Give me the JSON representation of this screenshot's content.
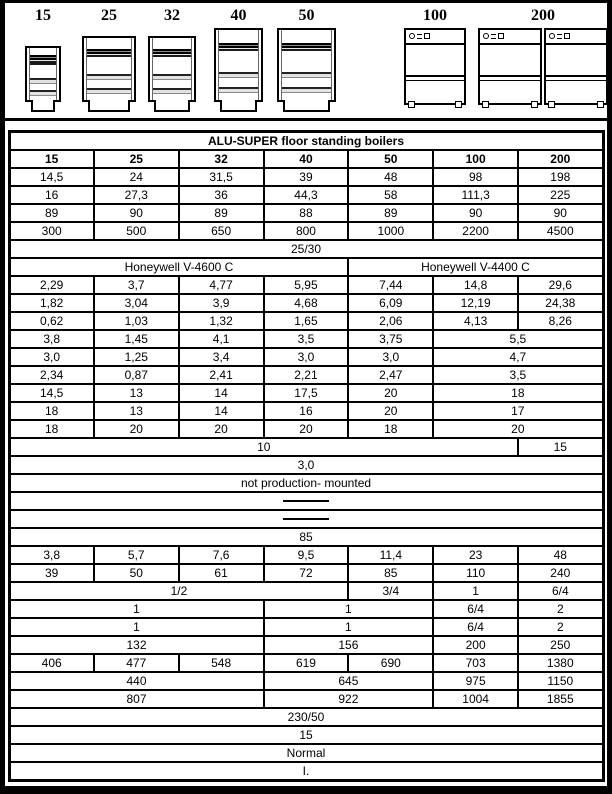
{
  "figures": {
    "labels": [
      "15",
      "25",
      "32",
      "40",
      "50",
      "100",
      "200"
    ]
  },
  "table": {
    "title": "ALU-SUPER floor standing boilers",
    "columns": [
      "15",
      "25",
      "32",
      "40",
      "50",
      "100",
      "200"
    ],
    "rows": [
      {
        "title": true,
        "cells": [
          {
            "t": "ALU-SUPER floor standing boilers",
            "s": 7
          }
        ]
      },
      {
        "bold": true,
        "cells": [
          {
            "t": "15"
          },
          {
            "t": "25"
          },
          {
            "t": "32"
          },
          {
            "t": "40"
          },
          {
            "t": "50"
          },
          {
            "t": "100"
          },
          {
            "t": "200"
          }
        ]
      },
      {
        "cells": [
          {
            "t": "14,5"
          },
          {
            "t": "24"
          },
          {
            "t": "31,5"
          },
          {
            "t": "39"
          },
          {
            "t": "48"
          },
          {
            "t": "98"
          },
          {
            "t": "198"
          }
        ]
      },
      {
        "cells": [
          {
            "t": "16"
          },
          {
            "t": "27,3"
          },
          {
            "t": "36"
          },
          {
            "t": "44,3"
          },
          {
            "t": "58"
          },
          {
            "t": "111,3"
          },
          {
            "t": "225"
          }
        ]
      },
      {
        "cells": [
          {
            "t": "89"
          },
          {
            "t": "90"
          },
          {
            "t": "89"
          },
          {
            "t": "88"
          },
          {
            "t": "89"
          },
          {
            "t": "90"
          },
          {
            "t": "90"
          }
        ]
      },
      {
        "cells": [
          {
            "t": "300"
          },
          {
            "t": "500"
          },
          {
            "t": "650"
          },
          {
            "t": "800"
          },
          {
            "t": "1000"
          },
          {
            "t": "2200"
          },
          {
            "t": "4500"
          }
        ]
      },
      {
        "cells": [
          {
            "t": "25/30",
            "s": 7
          }
        ]
      },
      {
        "cells": [
          {
            "t": "Honeywell V-4600 C",
            "s": 4
          },
          {
            "t": "Honeywell V-4400 C",
            "s": 3
          }
        ]
      },
      {
        "cells": [
          {
            "t": "2,29"
          },
          {
            "t": "3,7"
          },
          {
            "t": "4,77"
          },
          {
            "t": "5,95"
          },
          {
            "t": "7,44"
          },
          {
            "t": "14,8"
          },
          {
            "t": "29,6"
          }
        ]
      },
      {
        "cells": [
          {
            "t": "1,82"
          },
          {
            "t": "3,04"
          },
          {
            "t": "3,9"
          },
          {
            "t": "4,68"
          },
          {
            "t": "6,09"
          },
          {
            "t": "12,19"
          },
          {
            "t": "24,38"
          }
        ]
      },
      {
        "cells": [
          {
            "t": "0,62"
          },
          {
            "t": "1,03"
          },
          {
            "t": "1,32"
          },
          {
            "t": "1,65"
          },
          {
            "t": "2,06"
          },
          {
            "t": "4,13"
          },
          {
            "t": "8,26"
          }
        ]
      },
      {
        "cells": [
          {
            "t": "3,8"
          },
          {
            "t": "1,45"
          },
          {
            "t": "4,1"
          },
          {
            "t": "3,5"
          },
          {
            "t": "3,75"
          },
          {
            "t": "5,5",
            "s": 2
          }
        ]
      },
      {
        "cells": [
          {
            "t": "3,0"
          },
          {
            "t": "1,25"
          },
          {
            "t": "3,4"
          },
          {
            "t": "3,0"
          },
          {
            "t": "3,0"
          },
          {
            "t": "4,7",
            "s": 2
          }
        ]
      },
      {
        "cells": [
          {
            "t": "2,34"
          },
          {
            "t": "0,87"
          },
          {
            "t": "2,41"
          },
          {
            "t": "2,21"
          },
          {
            "t": "2,47"
          },
          {
            "t": "3,5",
            "s": 2
          }
        ]
      },
      {
        "cells": [
          {
            "t": "14,5"
          },
          {
            "t": "13"
          },
          {
            "t": "14"
          },
          {
            "t": "17,5"
          },
          {
            "t": "20"
          },
          {
            "t": "18",
            "s": 2
          }
        ]
      },
      {
        "cells": [
          {
            "t": "18"
          },
          {
            "t": "13"
          },
          {
            "t": "14"
          },
          {
            "t": "16"
          },
          {
            "t": "20"
          },
          {
            "t": "17",
            "s": 2
          }
        ]
      },
      {
        "cells": [
          {
            "t": "18"
          },
          {
            "t": "20"
          },
          {
            "t": "20"
          },
          {
            "t": "20"
          },
          {
            "t": "18"
          },
          {
            "t": "20",
            "s": 2
          }
        ]
      },
      {
        "cells": [
          {
            "t": "10",
            "s": 6
          },
          {
            "t": "15"
          }
        ]
      },
      {
        "cells": [
          {
            "t": "3,0",
            "s": 7
          }
        ]
      },
      {
        "cells": [
          {
            "t": "not production- mounted",
            "s": 7
          }
        ]
      },
      {
        "cells": [
          {
            "dash": true,
            "s": 7
          }
        ]
      },
      {
        "cells": [
          {
            "dash": true,
            "s": 7
          }
        ]
      },
      {
        "cells": [
          {
            "t": "85",
            "s": 7
          }
        ]
      },
      {
        "cells": [
          {
            "t": "3,8"
          },
          {
            "t": "5,7"
          },
          {
            "t": "7,6"
          },
          {
            "t": "9,5"
          },
          {
            "t": "11,4"
          },
          {
            "t": "23"
          },
          {
            "t": "48"
          }
        ]
      },
      {
        "cells": [
          {
            "t": "39"
          },
          {
            "t": "50"
          },
          {
            "t": "61"
          },
          {
            "t": "72"
          },
          {
            "t": "85"
          },
          {
            "t": "110"
          },
          {
            "t": "240"
          }
        ]
      },
      {
        "cells": [
          {
            "t": "1/2",
            "s": 4
          },
          {
            "t": "3/4"
          },
          {
            "t": "1"
          },
          {
            "t": "6/4"
          }
        ]
      },
      {
        "cells": [
          {
            "t": "1",
            "s": 3
          },
          {
            "t": "1",
            "s": 2
          },
          {
            "t": "6/4"
          },
          {
            "t": "2"
          }
        ]
      },
      {
        "cells": [
          {
            "t": "1",
            "s": 3
          },
          {
            "t": "1",
            "s": 2
          },
          {
            "t": "6/4"
          },
          {
            "t": "2"
          }
        ]
      },
      {
        "cells": [
          {
            "t": "132",
            "s": 3
          },
          {
            "t": "156",
            "s": 2
          },
          {
            "t": "200"
          },
          {
            "t": "250"
          }
        ]
      },
      {
        "cells": [
          {
            "t": "406"
          },
          {
            "t": "477"
          },
          {
            "t": "548"
          },
          {
            "t": "619"
          },
          {
            "t": "690"
          },
          {
            "t": "703"
          },
          {
            "t": "1380"
          }
        ]
      },
      {
        "cells": [
          {
            "t": "440",
            "s": 3
          },
          {
            "t": "645",
            "s": 2
          },
          {
            "t": "975"
          },
          {
            "t": "1150"
          }
        ]
      },
      {
        "cells": [
          {
            "t": "807",
            "s": 3
          },
          {
            "t": "922",
            "s": 2
          },
          {
            "t": "1004"
          },
          {
            "t": "1855"
          }
        ]
      },
      {
        "cells": [
          {
            "t": "230/50",
            "s": 7
          }
        ]
      },
      {
        "cells": [
          {
            "t": "15",
            "s": 7
          }
        ]
      },
      {
        "cells": [
          {
            "t": "Normal",
            "s": 7
          }
        ]
      },
      {
        "cells": [
          {
            "t": "I.",
            "s": 7
          }
        ]
      }
    ]
  },
  "colors": {
    "border": "#000000",
    "background": "#ffffff",
    "text": "#000000"
  }
}
